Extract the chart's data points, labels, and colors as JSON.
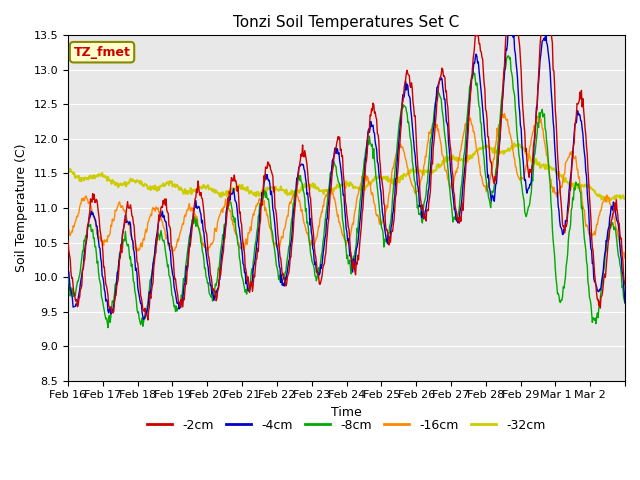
{
  "title": "Tonzi Soil Temperatures Set C",
  "xlabel": "Time",
  "ylabel": "Soil Temperature (C)",
  "ylim": [
    8.5,
    13.5
  ],
  "xlim": [
    0,
    16
  ],
  "x_tick_positions": [
    0,
    1,
    2,
    3,
    4,
    5,
    6,
    7,
    8,
    9,
    10,
    11,
    12,
    13,
    14,
    15,
    16
  ],
  "x_tick_labels": [
    "Feb 16",
    "Feb 17",
    "Feb 18",
    "Feb 19",
    "Feb 20",
    "Feb 21",
    "Feb 22",
    "Feb 23",
    "Feb 24",
    "Feb 25",
    "Feb 26",
    "Feb 27",
    "Feb 28",
    "Feb 29",
    "Mar 1",
    "Mar 2",
    ""
  ],
  "yticks": [
    8.5,
    9.0,
    9.5,
    10.0,
    10.5,
    11.0,
    11.5,
    12.0,
    12.5,
    13.0,
    13.5
  ],
  "colors": {
    "-2cm": "#cc0000",
    "-4cm": "#0000cc",
    "-8cm": "#00aa00",
    "-16cm": "#ff8800",
    "-32cm": "#cccc00"
  },
  "plot_bg_color": "#e8e8e8",
  "legend_label": "TZ_fmet",
  "legend_bg": "#ffffcc",
  "legend_border": "#888800"
}
